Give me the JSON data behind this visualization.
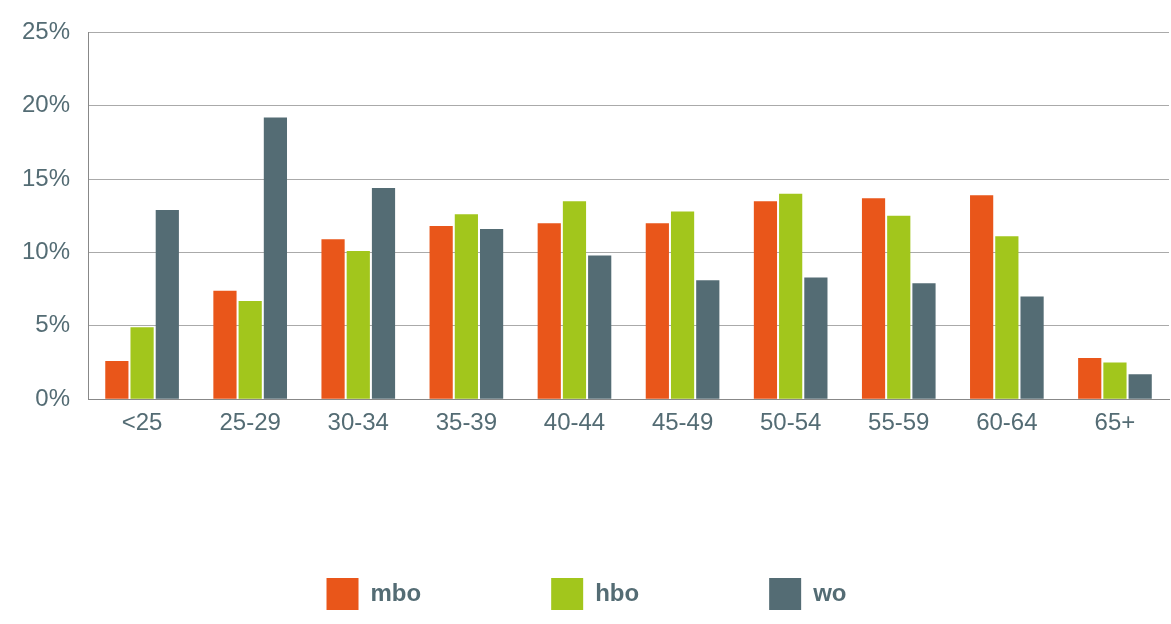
{
  "chart_data": {
    "type": "bar",
    "categories": [
      "<25",
      "25-29",
      "30-34",
      "35-39",
      "40-44",
      "45-49",
      "50-54",
      "55-59",
      "60-64",
      "65+"
    ],
    "series": [
      {
        "name": "mbo",
        "color": "#e9561a",
        "values": [
          2.6,
          7.4,
          10.9,
          11.8,
          12.0,
          12.0,
          13.5,
          13.7,
          13.9,
          2.8
        ]
      },
      {
        "name": "hbo",
        "color": "#a2c61c",
        "values": [
          4.9,
          6.7,
          10.1,
          12.6,
          13.5,
          12.8,
          14.0,
          12.5,
          11.1,
          2.5
        ]
      },
      {
        "name": "wo",
        "color": "#546c74",
        "values": [
          12.9,
          19.2,
          14.4,
          11.6,
          9.8,
          8.1,
          8.3,
          7.9,
          7.0,
          1.7
        ]
      }
    ],
    "ylim": [
      0,
      25
    ],
    "yticks": [
      {
        "value": 0,
        "label": "0%"
      },
      {
        "value": 5,
        "label": "5%"
      },
      {
        "value": 10,
        "label": "10%"
      },
      {
        "value": 15,
        "label": "15%"
      },
      {
        "value": 20,
        "label": "20%"
      },
      {
        "value": 25,
        "label": "25%"
      }
    ],
    "grid": "y",
    "legend": "bottom"
  }
}
